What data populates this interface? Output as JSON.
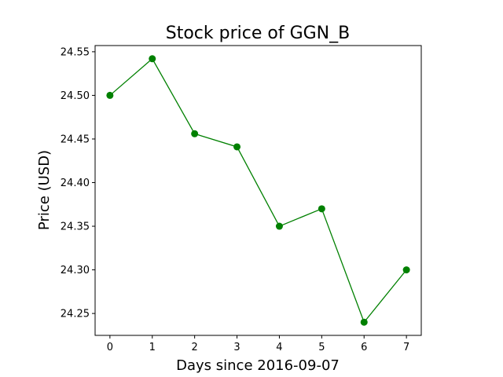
{
  "chart_data": {
    "type": "line",
    "title": "Stock price of GGN_B",
    "xlabel": "Days since 2016-09-07",
    "ylabel": "Price (USD)",
    "x": [
      0,
      1,
      2,
      3,
      4,
      5,
      6,
      7
    ],
    "series": [
      {
        "values": [
          24.5,
          24.542,
          24.456,
          24.441,
          24.35,
          24.37,
          24.24,
          24.3
        ],
        "color": "#008000",
        "marker": "circle"
      }
    ],
    "xticks": [
      "0",
      "1",
      "2",
      "3",
      "4",
      "5",
      "6",
      "7"
    ],
    "yticks": [
      "24.25",
      "24.30",
      "24.35",
      "24.40",
      "24.45",
      "24.50",
      "24.55"
    ],
    "xlim": [
      -0.35,
      7.35
    ],
    "ylim": [
      24.2249,
      24.5571
    ],
    "grid": false
  }
}
